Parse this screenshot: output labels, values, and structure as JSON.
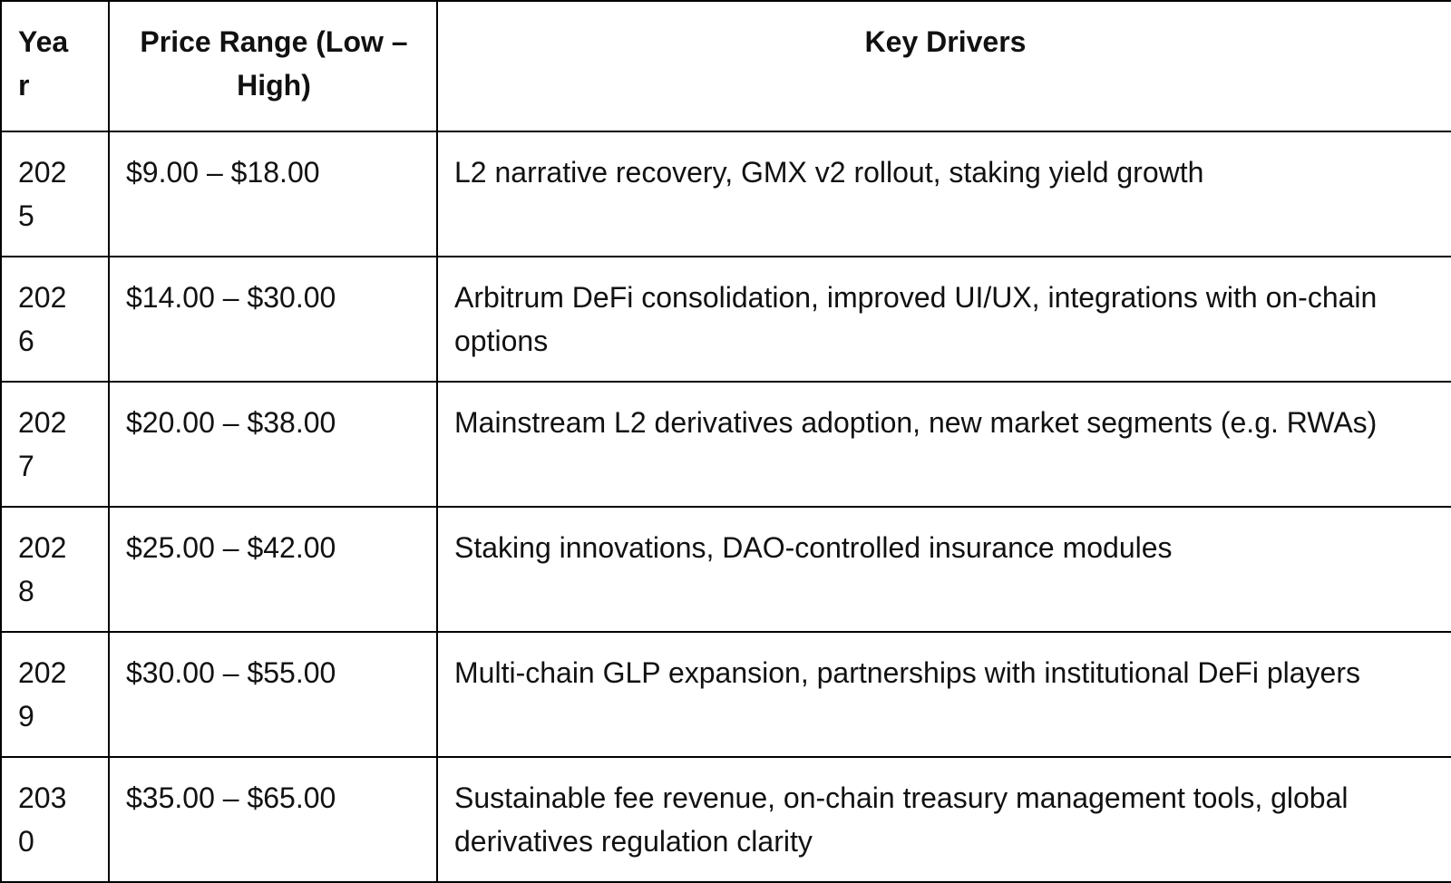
{
  "table": {
    "header": [
      "Year",
      "Price Range (Low – High)",
      "Key Drivers"
    ],
    "rows": [
      [
        "2025",
        "$9.00 – $18.00",
        "L2 narrative recovery, GMX v2 rollout, staking yield growth"
      ],
      [
        "2026",
        "$14.00 – $30.00",
        "Arbitrum DeFi consolidation, improved UI/UX, integrations with on-chain options"
      ],
      [
        "2027",
        "$20.00 – $38.00",
        "Mainstream L2 derivatives adoption, new market segments (e.g. RWAs)"
      ],
      [
        "2028",
        "$25.00 – $42.00",
        "Staking innovations, DAO-controlled insurance modules"
      ],
      [
        "2029",
        "$30.00 – $55.00",
        "Multi-chain GLP expansion, partnerships with institutional DeFi players"
      ],
      [
        "2030",
        "$35.00 – $65.00",
        "Sustainable fee revenue, on-chain treasury management tools, global derivatives regulation clarity"
      ]
    ]
  }
}
